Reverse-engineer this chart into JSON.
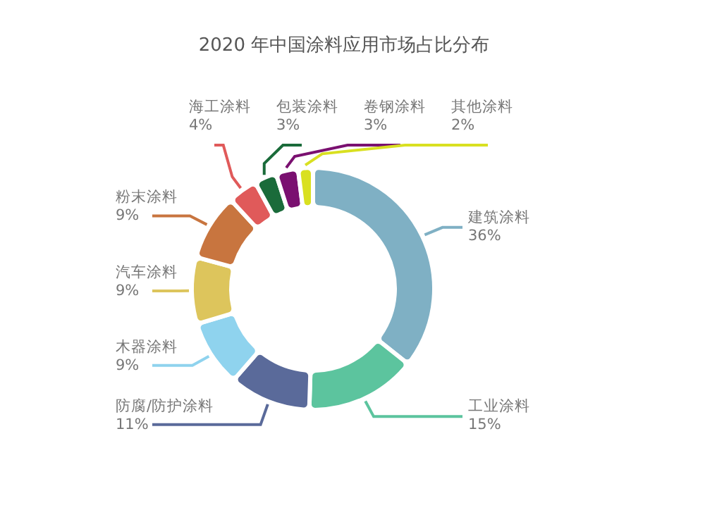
{
  "chart_data": {
    "type": "donut",
    "title": "2020 年中国涂料应用市场占比分布",
    "categories": [
      "建筑涂料",
      "工业涂料",
      "防腐/防护涂料",
      "木器涂料",
      "汽车涂料",
      "粉末涂料",
      "海工涂料",
      "包装涂料",
      "卷钢涂料",
      "其他涂料"
    ],
    "values": [
      36,
      15,
      11,
      9,
      9,
      9,
      4,
      3,
      3,
      2
    ],
    "colors": [
      "#7fb0c4",
      "#5cc49e",
      "#5a6a9a",
      "#8fd3ee",
      "#ddc55c",
      "#c8753f",
      "#e05a5a",
      "#1a6b3a",
      "#7a1070",
      "#d9e021"
    ],
    "value_labels": [
      "36%",
      "15%",
      "11%",
      "9%",
      "9%",
      "9%",
      "4%",
      "3%",
      "3%",
      "2%"
    ]
  }
}
